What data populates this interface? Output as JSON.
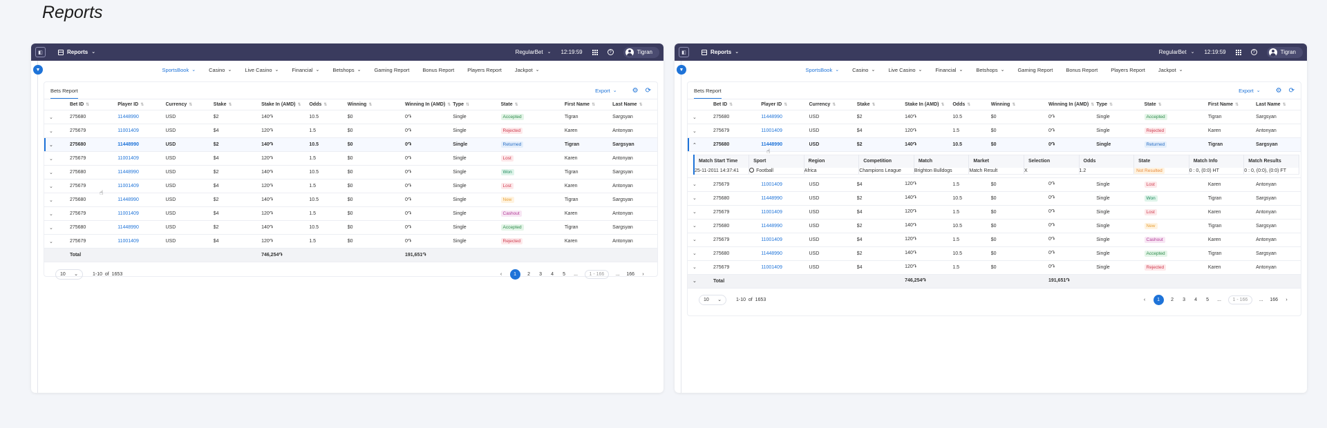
{
  "page": {
    "title": "Reports"
  },
  "app": {
    "section": "Reports",
    "brand": "RegularBet",
    "time": "12:19:59",
    "user": "Tigran",
    "logo": "◧"
  },
  "nav": [
    {
      "label": "SportsBook",
      "dropdown": true,
      "active": true
    },
    {
      "label": "Casino",
      "dropdown": true
    },
    {
      "label": "Live Casino",
      "dropdown": true
    },
    {
      "label": "Financial",
      "dropdown": true
    },
    {
      "label": "Betshops",
      "dropdown": true
    },
    {
      "label": "Gaming Report",
      "dropdown": false
    },
    {
      "label": "Bonus Report",
      "dropdown": false
    },
    {
      "label": "Players Report",
      "dropdown": false
    },
    {
      "label": "Jackpot",
      "dropdown": true
    }
  ],
  "card": {
    "title": "Bets Report",
    "export_label": "Export"
  },
  "columns": [
    "Bet ID",
    "Player ID",
    "Currency",
    "Stake",
    "Stake In (AMD)",
    "Odds",
    "Winning",
    "Winning In (AMD)",
    "Type",
    "State",
    "First Name",
    "Last Name"
  ],
  "rows": [
    {
      "bet_id": "275680",
      "player_id": "11448990",
      "currency": "USD",
      "stake": "$2",
      "stake_amd": "140֏",
      "odds": "10.5",
      "winning": "$0",
      "winning_amd": "0֏",
      "type": "Single",
      "state": "Accepted",
      "first": "Tigran",
      "last": "Sargsyan"
    },
    {
      "bet_id": "275679",
      "player_id": "11001409",
      "currency": "USD",
      "stake": "$4",
      "stake_amd": "120֏",
      "odds": "1.5",
      "winning": "$0",
      "winning_amd": "0֏",
      "type": "Single",
      "state": "Rejected",
      "first": "Karen",
      "last": "Antonyan"
    },
    {
      "bet_id": "275680",
      "player_id": "11448990",
      "currency": "USD",
      "stake": "$2",
      "stake_amd": "140֏",
      "odds": "10.5",
      "winning": "$0",
      "winning_amd": "0֏",
      "type": "Single",
      "state": "Returned",
      "first": "Tigran",
      "last": "Sargsyan"
    },
    {
      "bet_id": "275679",
      "player_id": "11001409",
      "currency": "USD",
      "stake": "$4",
      "stake_amd": "120֏",
      "odds": "1.5",
      "winning": "$0",
      "winning_amd": "0֏",
      "type": "Single",
      "state": "Lost",
      "first": "Karen",
      "last": "Antonyan"
    },
    {
      "bet_id": "275680",
      "player_id": "11448990",
      "currency": "USD",
      "stake": "$2",
      "stake_amd": "140֏",
      "odds": "10.5",
      "winning": "$0",
      "winning_amd": "0֏",
      "type": "Single",
      "state": "Won",
      "first": "Tigran",
      "last": "Sargsyan"
    },
    {
      "bet_id": "275679",
      "player_id": "11001409",
      "currency": "USD",
      "stake": "$4",
      "stake_amd": "120֏",
      "odds": "1.5",
      "winning": "$0",
      "winning_amd": "0֏",
      "type": "Single",
      "state": "Lost",
      "first": "Karen",
      "last": "Antonyan"
    },
    {
      "bet_id": "275680",
      "player_id": "11448990",
      "currency": "USD",
      "stake": "$2",
      "stake_amd": "140֏",
      "odds": "10.5",
      "winning": "$0",
      "winning_amd": "0֏",
      "type": "Single",
      "state": "New",
      "first": "Tigran",
      "last": "Sargsyan"
    },
    {
      "bet_id": "275679",
      "player_id": "11001409",
      "currency": "USD",
      "stake": "$4",
      "stake_amd": "120֏",
      "odds": "1.5",
      "winning": "$0",
      "winning_amd": "0֏",
      "type": "Single",
      "state": "Cashout",
      "first": "Karen",
      "last": "Antonyan"
    },
    {
      "bet_id": "275680",
      "player_id": "11448990",
      "currency": "USD",
      "stake": "$2",
      "stake_amd": "140֏",
      "odds": "10.5",
      "winning": "$0",
      "winning_amd": "0֏",
      "type": "Single",
      "state": "Accepted",
      "first": "Tigran",
      "last": "Sargsyan"
    },
    {
      "bet_id": "275679",
      "player_id": "11001409",
      "currency": "USD",
      "stake": "$4",
      "stake_amd": "120֏",
      "odds": "1.5",
      "winning": "$0",
      "winning_amd": "0֏",
      "type": "Single",
      "state": "Rejected",
      "first": "Karen",
      "last": "Antonyan"
    }
  ],
  "total": {
    "label": "Total",
    "stake_amd": "746,254֏",
    "winning_amd": "191,651֏"
  },
  "details": {
    "columns": [
      "Match Start Time",
      "Sport",
      "Region",
      "Competition",
      "Match",
      "Market",
      "Selection",
      "Odds",
      "State",
      "Match Info",
      "Match Results"
    ],
    "row": {
      "start": "25-11-2011 14:37:41",
      "sport": "Football",
      "region": "Africa",
      "competition": "Champions League",
      "match": "Brighton Bulldogs",
      "market": "Match Result",
      "selection": "X",
      "odds": "1.2",
      "state": "Not Resulted",
      "info": "0 : 0, (0:0) HT",
      "results": "0 : 0, (0:0), (0:0) FT"
    }
  },
  "pagination": {
    "page_size": "10",
    "range": "1-10",
    "of": "of",
    "total_count": "1653",
    "pages": [
      "1",
      "2",
      "3",
      "4",
      "5"
    ],
    "ellipsis": "...",
    "jump_placeholder_left": "1 - 166",
    "jump_placeholder_right": "1 - 166",
    "last_page": "166",
    "prev": "‹",
    "next": "›"
  },
  "icons": {
    "chevron_down": "⌄",
    "chevron_up": "⌃",
    "sort": "⇅",
    "gear": "⚙",
    "refresh": "⟳",
    "filter": "▼",
    "help": "?"
  },
  "colors": {
    "accent": "#1e73d8",
    "topbar": "#3a3b5e"
  }
}
